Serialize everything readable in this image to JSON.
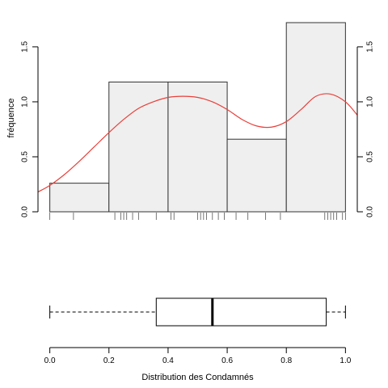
{
  "chart_data": [
    {
      "type": "bar",
      "subtype": "histogram",
      "bins": [
        {
          "from": 0.0,
          "to": 0.2,
          "density": 0.26
        },
        {
          "from": 0.2,
          "to": 0.4,
          "density": 1.18
        },
        {
          "from": 0.4,
          "to": 0.6,
          "density": 1.18
        },
        {
          "from": 0.6,
          "to": 0.8,
          "density": 0.66
        },
        {
          "from": 0.8,
          "to": 1.0,
          "density": 1.72
        }
      ],
      "ylabel": "fréquence",
      "xlim": [
        -0.04,
        1.04
      ],
      "ylim": [
        0,
        1.72
      ],
      "y_ticks": [
        "0.0",
        "0.5",
        "1.0",
        "1.5"
      ],
      "y_tick_values": [
        0.0,
        0.5,
        1.0,
        1.5
      ],
      "y_axis_on_both_sides": true,
      "bar_fill": "#efefef",
      "bar_stroke": "#333333",
      "density_curve": {
        "color": "#e8403a",
        "x": [
          -0.04,
          0.0,
          0.05,
          0.1,
          0.15,
          0.2,
          0.25,
          0.3,
          0.35,
          0.4,
          0.45,
          0.5,
          0.55,
          0.6,
          0.65,
          0.7,
          0.75,
          0.8,
          0.85,
          0.9,
          0.95,
          1.0,
          1.04
        ],
        "y": [
          0.18,
          0.24,
          0.34,
          0.46,
          0.59,
          0.72,
          0.84,
          0.94,
          1.0,
          1.04,
          1.05,
          1.04,
          1.0,
          0.93,
          0.84,
          0.78,
          0.77,
          0.82,
          0.93,
          1.05,
          1.07,
          1.0,
          0.88
        ]
      },
      "rug": [
        0.0,
        0.08,
        0.22,
        0.24,
        0.25,
        0.26,
        0.28,
        0.3,
        0.36,
        0.41,
        0.42,
        0.5,
        0.51,
        0.52,
        0.53,
        0.55,
        0.57,
        0.59,
        0.63,
        0.67,
        0.73,
        0.78,
        0.93,
        0.94,
        0.95,
        0.96,
        0.97,
        0.99,
        1.0
      ]
    },
    {
      "type": "boxplot",
      "orientation": "horizontal",
      "min": 0.0,
      "q1": 0.36,
      "median": 0.55,
      "q3": 0.935,
      "max": 1.0,
      "xlabel": "Distribution des Condamnés",
      "x_ticks": [
        "0.0",
        "0.2",
        "0.4",
        "0.6",
        "0.8",
        "1.0"
      ],
      "x_tick_values": [
        0.0,
        0.2,
        0.4,
        0.6,
        0.8,
        1.0
      ]
    }
  ]
}
